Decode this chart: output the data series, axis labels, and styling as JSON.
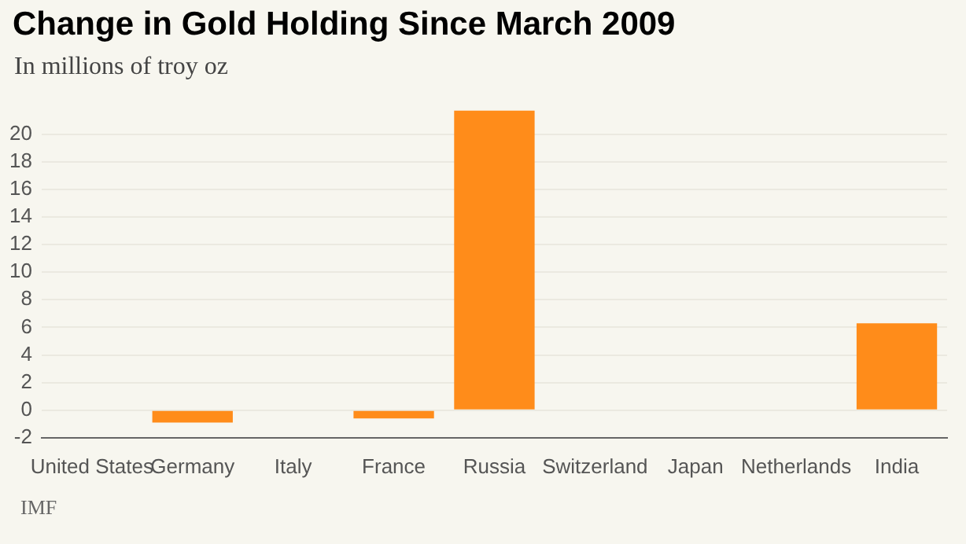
{
  "chart_data": {
    "type": "bar",
    "title": "Change in Gold Holding Since March 2009",
    "subtitle": "In millions of troy oz",
    "categories": [
      "United States",
      "Germany",
      "Italy",
      "France",
      "Russia",
      "Switzerland",
      "Japan",
      "Netherlands",
      "India"
    ],
    "values": [
      0,
      -0.9,
      0,
      -0.6,
      21.7,
      0,
      0,
      0,
      6.3
    ],
    "color": "#ff8c1a",
    "ylim": [
      -2,
      22
    ],
    "yticks": [
      -2,
      0,
      2,
      4,
      6,
      8,
      10,
      12,
      14,
      16,
      18,
      20
    ],
    "grid": "y",
    "legend": false,
    "annotations": [
      "IMF"
    ]
  }
}
